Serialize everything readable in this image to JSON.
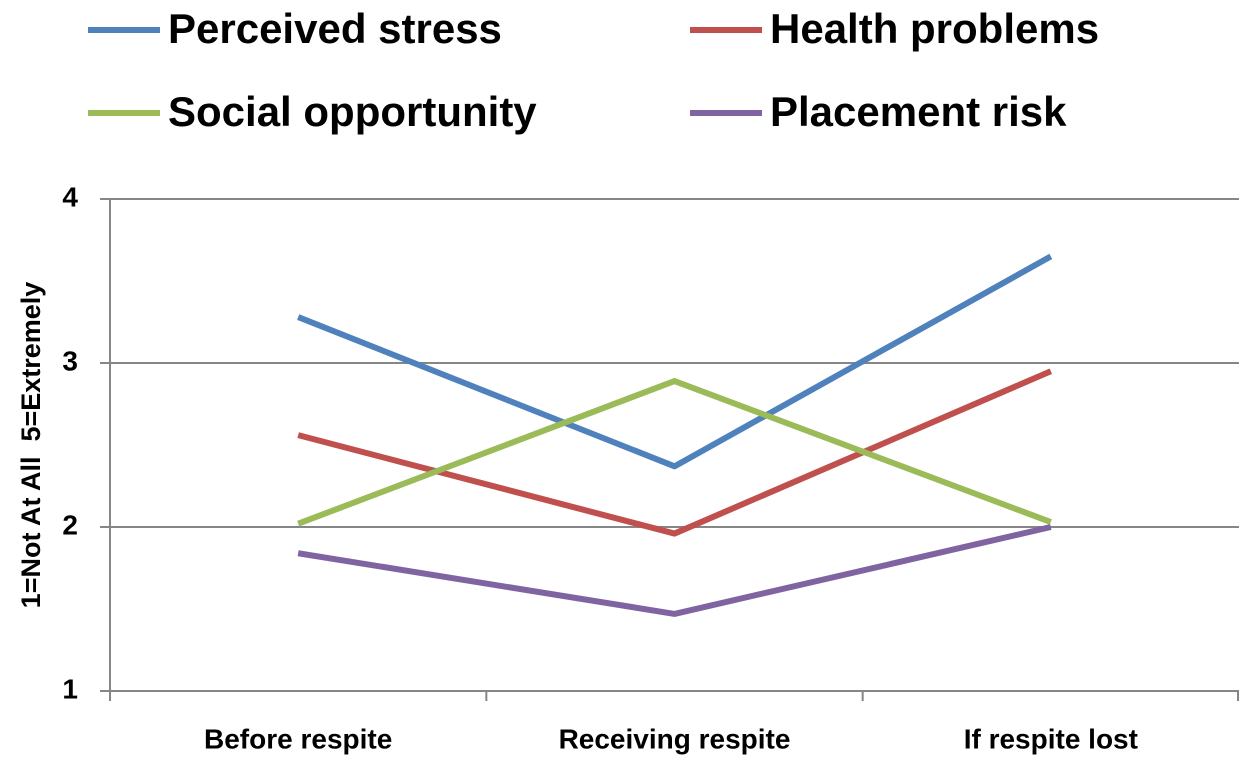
{
  "chart_data": {
    "type": "line",
    "categories": [
      "Before respite",
      "Receiving respite",
      "If respite lost"
    ],
    "series": [
      {
        "name": "Perceived stress",
        "color": "#4f81bd",
        "values": [
          3.28,
          2.37,
          3.65
        ]
      },
      {
        "name": "Health problems",
        "color": "#c0504d",
        "values": [
          2.56,
          1.96,
          2.95
        ]
      },
      {
        "name": "Social opportunity",
        "color": "#9bbb59",
        "values": [
          2.02,
          2.89,
          2.03
        ]
      },
      {
        "name": "Placement risk",
        "color": "#8064a2",
        "values": [
          1.84,
          1.47,
          2.0
        ]
      }
    ],
    "ylabel": "1=Not At All  5=Extremely",
    "ylim": [
      1,
      4
    ],
    "yticks": [
      1,
      2,
      3,
      4
    ],
    "grid": true
  }
}
